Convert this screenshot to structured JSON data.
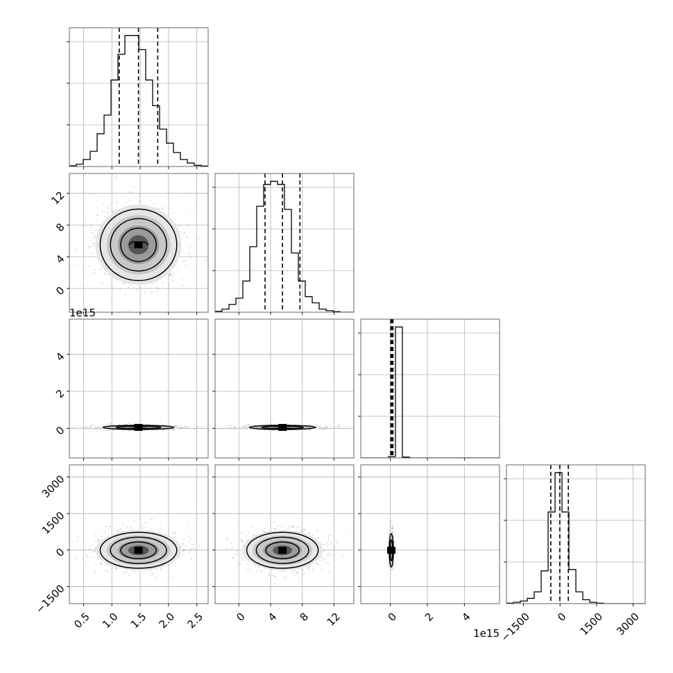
{
  "chart_data": {
    "type": "corner",
    "grid": true,
    "panel_order": [
      0,
      1,
      2,
      3
    ],
    "parameters": [
      {
        "range": [
          0.25,
          2.7
        ],
        "ticks": [
          0.5,
          1.0,
          1.5,
          2.0,
          2.5
        ],
        "tick_labels": [
          "0.5",
          "1.0",
          "1.5",
          "2.0",
          "2.5"
        ],
        "offset_label": "",
        "hist": {
          "bin_start": 0.25,
          "bin_width": 0.1225,
          "counts": [
            0.3,
            1,
            3,
            6.5,
            14,
            22,
            37,
            48,
            56,
            56,
            50,
            37,
            26,
            16,
            10,
            6,
            3,
            1.5,
            0.5,
            0.2
          ]
        },
        "quantiles": [
          1.13,
          1.47,
          1.81
        ]
      },
      {
        "range": [
          -3,
          14.5
        ],
        "ticks": [
          0,
          4,
          8,
          12
        ],
        "tick_labels": [
          "0",
          "4",
          "8",
          "12"
        ],
        "offset_label": "",
        "hist": {
          "bin_start": -3,
          "bin_width": 0.875,
          "counts": [
            0.3,
            1,
            2.5,
            4.5,
            10,
            21,
            34,
            41,
            42,
            41,
            33,
            19,
            10,
            5,
            3,
            1,
            0.5,
            0.2,
            0,
            0
          ]
        },
        "quantiles": [
          3.3,
          5.5,
          7.7
        ]
      },
      {
        "range": [
          -1.6,
          5.9
        ],
        "ticks": [
          0,
          2,
          4
        ],
        "tick_labels": [
          "0",
          "2",
          "4"
        ],
        "offset_label": "1e15",
        "hist": {
          "bin_start": -1.6,
          "bin_width": 0.375,
          "counts": [
            0,
            0,
            0,
            0,
            0.5,
            48,
            0.3,
            0,
            0,
            0,
            0,
            0,
            0,
            0,
            0,
            0,
            0,
            0,
            0,
            0
          ]
        },
        "quantiles": [
          0.02,
          0.08,
          0.14
        ]
      },
      {
        "range": [
          -2200,
          3500
        ],
        "ticks": [
          -1500,
          0,
          1500,
          3000
        ],
        "tick_labels": [
          "−1500",
          "0",
          "1500",
          "3000"
        ],
        "offset_label": "",
        "hist": {
          "bin_start": -2200,
          "bin_width": 285,
          "counts": [
            0.3,
            1,
            2,
            4,
            9,
            25,
            70,
            100,
            70,
            26,
            9,
            3,
            1,
            0.3,
            0,
            0,
            0,
            0,
            0,
            0
          ]
        },
        "quantiles": [
          -380,
          -10,
          340
        ]
      }
    ],
    "pairs": [
      {
        "x": 0,
        "y": 1,
        "center": [
          1.47,
          5.5
        ],
        "spread": [
          0.33,
          2.2
        ],
        "scatter_points": 900,
        "contours": [
          1,
          2,
          3
        ],
        "hole": true
      },
      {
        "x": 0,
        "y": 2,
        "center": [
          1.47,
          0.05
        ],
        "spread": [
          0.33,
          0.06
        ],
        "scatter_points": 500,
        "contours": [
          1,
          2
        ],
        "hole": false
      },
      {
        "x": 1,
        "y": 2,
        "center": [
          5.5,
          0.05
        ],
        "spread": [
          2.2,
          0.06
        ],
        "scatter_points": 500,
        "contours": [
          1,
          2
        ],
        "hole": false
      },
      {
        "x": 0,
        "y": 3,
        "center": [
          1.47,
          -10
        ],
        "spread": [
          0.33,
          360
        ],
        "scatter_points": 900,
        "contours": [
          1,
          2,
          3
        ],
        "hole": false
      },
      {
        "x": 1,
        "y": 3,
        "center": [
          5.5,
          -10
        ],
        "spread": [
          2.2,
          360
        ],
        "scatter_points": 900,
        "contours": [
          1,
          2,
          3
        ],
        "hole": false
      },
      {
        "x": 2,
        "y": 3,
        "center": [
          0.05,
          -10
        ],
        "spread": [
          0.06,
          360
        ],
        "scatter_points": 300,
        "contours": [
          1,
          2
        ],
        "hole": false
      }
    ]
  }
}
